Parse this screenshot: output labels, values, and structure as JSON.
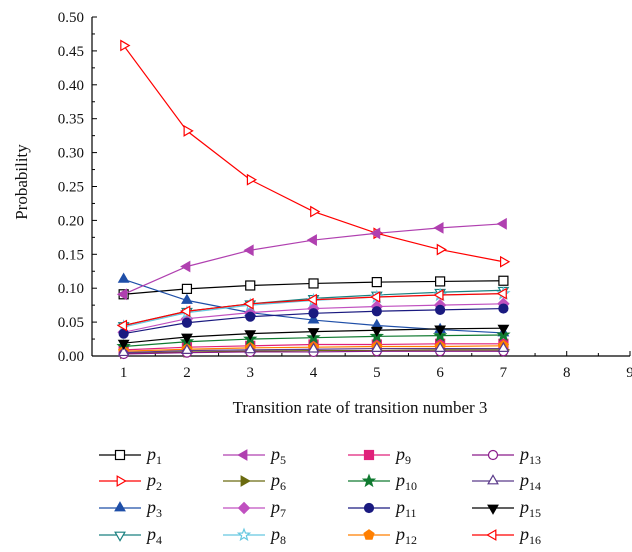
{
  "chart_data": {
    "type": "line",
    "xlabel": "Transition rate of transition number 3",
    "ylabel": "Probability",
    "xlim": [
      0.5,
      9
    ],
    "ylim": [
      0,
      0.5
    ],
    "x_ticks": [
      1,
      2,
      3,
      4,
      5,
      6,
      7,
      8,
      9
    ],
    "y_ticks": [
      0.0,
      0.05,
      0.1,
      0.15,
      0.2,
      0.25,
      0.3,
      0.35,
      0.4,
      0.45,
      0.5
    ],
    "y_tick_labels": [
      "0.00",
      "0.05",
      "0.10",
      "0.15",
      "0.20",
      "0.25",
      "0.30",
      "0.35",
      "0.40",
      "0.45",
      "0.50"
    ],
    "grid": false,
    "legend_position": "bottom",
    "x": [
      1,
      2,
      3,
      4,
      5,
      6,
      7
    ],
    "series": [
      {
        "name": "p",
        "sub": "1",
        "color": "#000000",
        "marker": "square-open",
        "values": [
          0.091,
          0.099,
          0.104,
          0.107,
          0.109,
          0.11,
          0.111
        ]
      },
      {
        "name": "p",
        "sub": "2",
        "color": "#ff0000",
        "marker": "triangle-right-open",
        "values": [
          0.458,
          0.332,
          0.26,
          0.213,
          0.181,
          0.157,
          0.139
        ]
      },
      {
        "name": "p",
        "sub": "3",
        "color": "#1f4fa8",
        "marker": "triangle-up-filled",
        "values": [
          0.113,
          0.082,
          0.064,
          0.053,
          0.045,
          0.039,
          0.034
        ]
      },
      {
        "name": "p",
        "sub": "4",
        "color": "#1a8080",
        "marker": "triangle-down-open",
        "values": [
          0.045,
          0.066,
          0.077,
          0.085,
          0.09,
          0.094,
          0.097
        ]
      },
      {
        "name": "p",
        "sub": "5",
        "color": "#b040b0",
        "marker": "triangle-left-filled",
        "values": [
          0.091,
          0.132,
          0.156,
          0.171,
          0.181,
          0.189,
          0.195
        ]
      },
      {
        "name": "p",
        "sub": "6",
        "color": "#6b6b10",
        "marker": "triangle-right-filled",
        "values": [
          0.004,
          0.006,
          0.007,
          0.008,
          0.008,
          0.009,
          0.009
        ]
      },
      {
        "name": "p",
        "sub": "7",
        "color": "#c050c0",
        "marker": "diamond-filled",
        "values": [
          0.035,
          0.055,
          0.064,
          0.07,
          0.073,
          0.075,
          0.077
        ]
      },
      {
        "name": "p",
        "sub": "8",
        "color": "#66c8e0",
        "marker": "star-open",
        "values": [
          0.043,
          0.064,
          0.075,
          0.082,
          0.087,
          0.09,
          0.092
        ]
      },
      {
        "name": "p",
        "sub": "9",
        "color": "#e0207a",
        "marker": "square-filled",
        "values": [
          0.009,
          0.013,
          0.015,
          0.017,
          0.017,
          0.018,
          0.018
        ]
      },
      {
        "name": "p",
        "sub": "10",
        "color": "#107a30",
        "marker": "star-filled",
        "values": [
          0.014,
          0.021,
          0.025,
          0.027,
          0.029,
          0.03,
          0.031
        ]
      },
      {
        "name": "p",
        "sub": "11",
        "color": "#1a1a80",
        "marker": "circle-filled",
        "values": [
          0.033,
          0.049,
          0.058,
          0.063,
          0.066,
          0.068,
          0.07
        ]
      },
      {
        "name": "p",
        "sub": "12",
        "color": "#ff7f00",
        "marker": "pentagon-filled",
        "values": [
          0.007,
          0.01,
          0.012,
          0.013,
          0.014,
          0.014,
          0.015
        ]
      },
      {
        "name": "p",
        "sub": "13",
        "color": "#8a1a8a",
        "marker": "circle-open",
        "values": [
          0.003,
          0.005,
          0.006,
          0.006,
          0.007,
          0.007,
          0.007
        ]
      },
      {
        "name": "p",
        "sub": "14",
        "color": "#5a3a8a",
        "marker": "triangle-up-open",
        "values": [
          0.005,
          0.008,
          0.009,
          0.01,
          0.011,
          0.011,
          0.011
        ]
      },
      {
        "name": "p",
        "sub": "15",
        "color": "#000000",
        "marker": "triangle-down-filled",
        "values": [
          0.019,
          0.028,
          0.033,
          0.036,
          0.038,
          0.04,
          0.041
        ]
      },
      {
        "name": "p",
        "sub": "16",
        "color": "#ff0000",
        "marker": "triangle-left-open",
        "values": [
          0.045,
          0.066,
          0.077,
          0.083,
          0.087,
          0.09,
          0.092
        ]
      }
    ]
  }
}
